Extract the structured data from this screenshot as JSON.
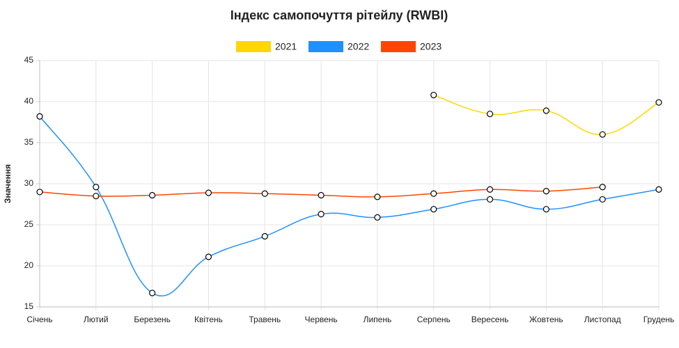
{
  "chart_data": {
    "type": "line",
    "title": "Індекс самопочуття рітейлу (RWBI)",
    "y_label": "Значення",
    "categories": [
      "Січень",
      "Лютий",
      "Березень",
      "Квітень",
      "Травень",
      "Червень",
      "Липень",
      "Серпень",
      "Вересень",
      "Жовтень",
      "Листопад",
      "Грудень"
    ],
    "series": [
      {
        "name": "2021",
        "color": "#ffd700",
        "values": [
          null,
          null,
          null,
          null,
          null,
          null,
          null,
          40.8,
          38.5,
          38.9,
          36.0,
          39.9
        ]
      },
      {
        "name": "2022",
        "color": "#1e90ff",
        "values": [
          38.2,
          29.6,
          16.7,
          21.1,
          23.6,
          26.3,
          25.9,
          26.9,
          28.1,
          26.9,
          28.1,
          29.3
        ]
      },
      {
        "name": "2023",
        "color": "#ff4500",
        "values": [
          29.0,
          28.5,
          28.6,
          28.9,
          28.8,
          28.6,
          28.4,
          28.8,
          29.3,
          29.1,
          29.6,
          null
        ]
      }
    ],
    "ylim": [
      15,
      45
    ],
    "yticks": [
      15,
      20,
      25,
      30,
      35,
      40,
      45
    ],
    "grid": true,
    "legend": "top"
  }
}
